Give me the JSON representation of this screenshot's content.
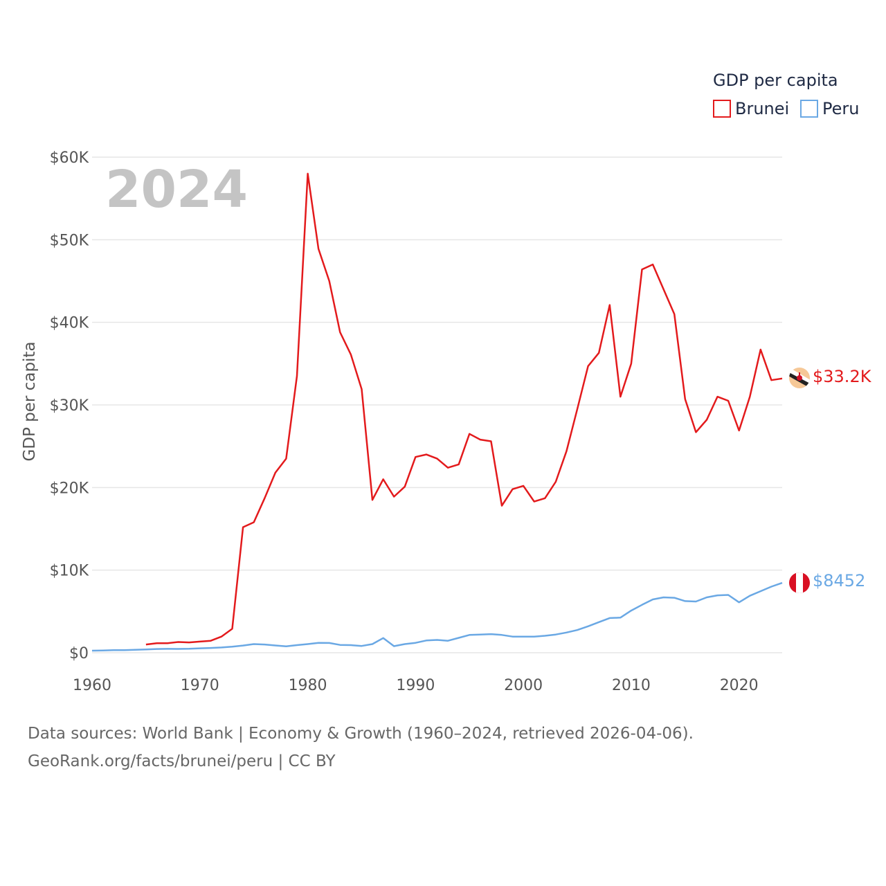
{
  "colors": {
    "brunei": "#e31a1c",
    "peru": "#6aa8e4",
    "grid": "#e6e6e6",
    "axis_text": "#555555",
    "year_watermark": "#c4c4c4"
  },
  "legend": {
    "title": "GDP per capita",
    "items": [
      {
        "label": "Brunei",
        "color": "#e31a1c"
      },
      {
        "label": "Peru",
        "color": "#6aa8e4"
      }
    ]
  },
  "year_label": "2024",
  "end_labels": {
    "brunei": "$33.2K",
    "peru": "$8452"
  },
  "flags": {
    "brunei": "brunei-flag-icon",
    "peru": "peru-flag-icon"
  },
  "source": {
    "line1": "Data sources: World Bank | Economy & Growth (1960–2024, retrieved 2026-04-06).",
    "line2": "GeoRank.org/facts/brunei/peru | CC BY"
  },
  "chart_data": {
    "type": "line",
    "title": "GDP per capita",
    "xlabel": "",
    "ylabel": "GDP per capita",
    "xlim": [
      1960,
      2024
    ],
    "ylim": [
      0,
      60000
    ],
    "x_ticks": [
      1960,
      1970,
      1980,
      1990,
      2000,
      2010,
      2020
    ],
    "x_tick_labels": [
      "1960",
      "1970",
      "1980",
      "1990",
      "2000",
      "2010",
      "2020"
    ],
    "y_ticks": [
      0,
      10000,
      20000,
      30000,
      40000,
      50000,
      60000
    ],
    "y_tick_labels": [
      "$0",
      "$10K",
      "$20K",
      "$30K",
      "$40K",
      "$50K",
      "$60K"
    ],
    "grid": true,
    "legend_position": "top-right",
    "series": [
      {
        "name": "Brunei",
        "color": "#e31a1c",
        "x": [
          1965,
          1966,
          1967,
          1968,
          1969,
          1970,
          1971,
          1972,
          1973,
          1974,
          1975,
          1976,
          1977,
          1978,
          1979,
          1980,
          1981,
          1982,
          1983,
          1984,
          1985,
          1986,
          1987,
          1988,
          1989,
          1990,
          1991,
          1992,
          1993,
          1994,
          1995,
          1996,
          1997,
          1998,
          1999,
          2000,
          2001,
          2002,
          2003,
          2004,
          2005,
          2006,
          2007,
          2008,
          2009,
          2010,
          2011,
          2012,
          2013,
          2014,
          2015,
          2016,
          2017,
          2018,
          2019,
          2020,
          2021,
          2022,
          2023,
          2024
        ],
        "values": [
          1000,
          1150,
          1150,
          1300,
          1250,
          1350,
          1450,
          1950,
          2900,
          15200,
          15800,
          18700,
          21800,
          23500,
          33500,
          58000,
          48900,
          45000,
          38800,
          36100,
          31900,
          18500,
          21000,
          18900,
          20100,
          23700,
          24000,
          23500,
          22400,
          22800,
          26500,
          25800,
          25600,
          17800,
          19800,
          20200,
          18300,
          18700,
          20700,
          24400,
          29500,
          34700,
          36300,
          42100,
          31000,
          35000,
          46400,
          47000,
          44000,
          41000,
          30700,
          26700,
          28200,
          31000,
          30500,
          26900,
          31000,
          36700,
          33000,
          33200
        ],
        "end_label": "$33.2K"
      },
      {
        "name": "Peru",
        "color": "#6aa8e4",
        "x": [
          1960,
          1961,
          1962,
          1963,
          1964,
          1965,
          1966,
          1967,
          1968,
          1969,
          1970,
          1971,
          1972,
          1973,
          1974,
          1975,
          1976,
          1977,
          1978,
          1979,
          1980,
          1981,
          1982,
          1983,
          1984,
          1985,
          1986,
          1987,
          1988,
          1989,
          1990,
          1991,
          1992,
          1993,
          1994,
          1995,
          1996,
          1997,
          1998,
          1999,
          2000,
          2001,
          2002,
          2003,
          2004,
          2005,
          2006,
          2007,
          2008,
          2009,
          2010,
          2011,
          2012,
          2013,
          2014,
          2015,
          2016,
          2017,
          2018,
          2019,
          2020,
          2021,
          2022,
          2023,
          2024
        ],
        "values": [
          250,
          280,
          310,
          320,
          350,
          400,
          450,
          470,
          460,
          480,
          540,
          580,
          640,
          730,
          870,
          1050,
          1000,
          880,
          780,
          920,
          1050,
          1200,
          1180,
          950,
          920,
          820,
          1050,
          1780,
          800,
          1050,
          1200,
          1480,
          1550,
          1450,
          1800,
          2150,
          2200,
          2250,
          2150,
          1950,
          1950,
          1950,
          2050,
          2200,
          2450,
          2750,
          3200,
          3700,
          4200,
          4250,
          5100,
          5800,
          6450,
          6700,
          6650,
          6250,
          6200,
          6700,
          6950,
          7000,
          6100,
          6900,
          7450,
          8000,
          8452
        ],
        "end_label": "$8452"
      }
    ]
  }
}
